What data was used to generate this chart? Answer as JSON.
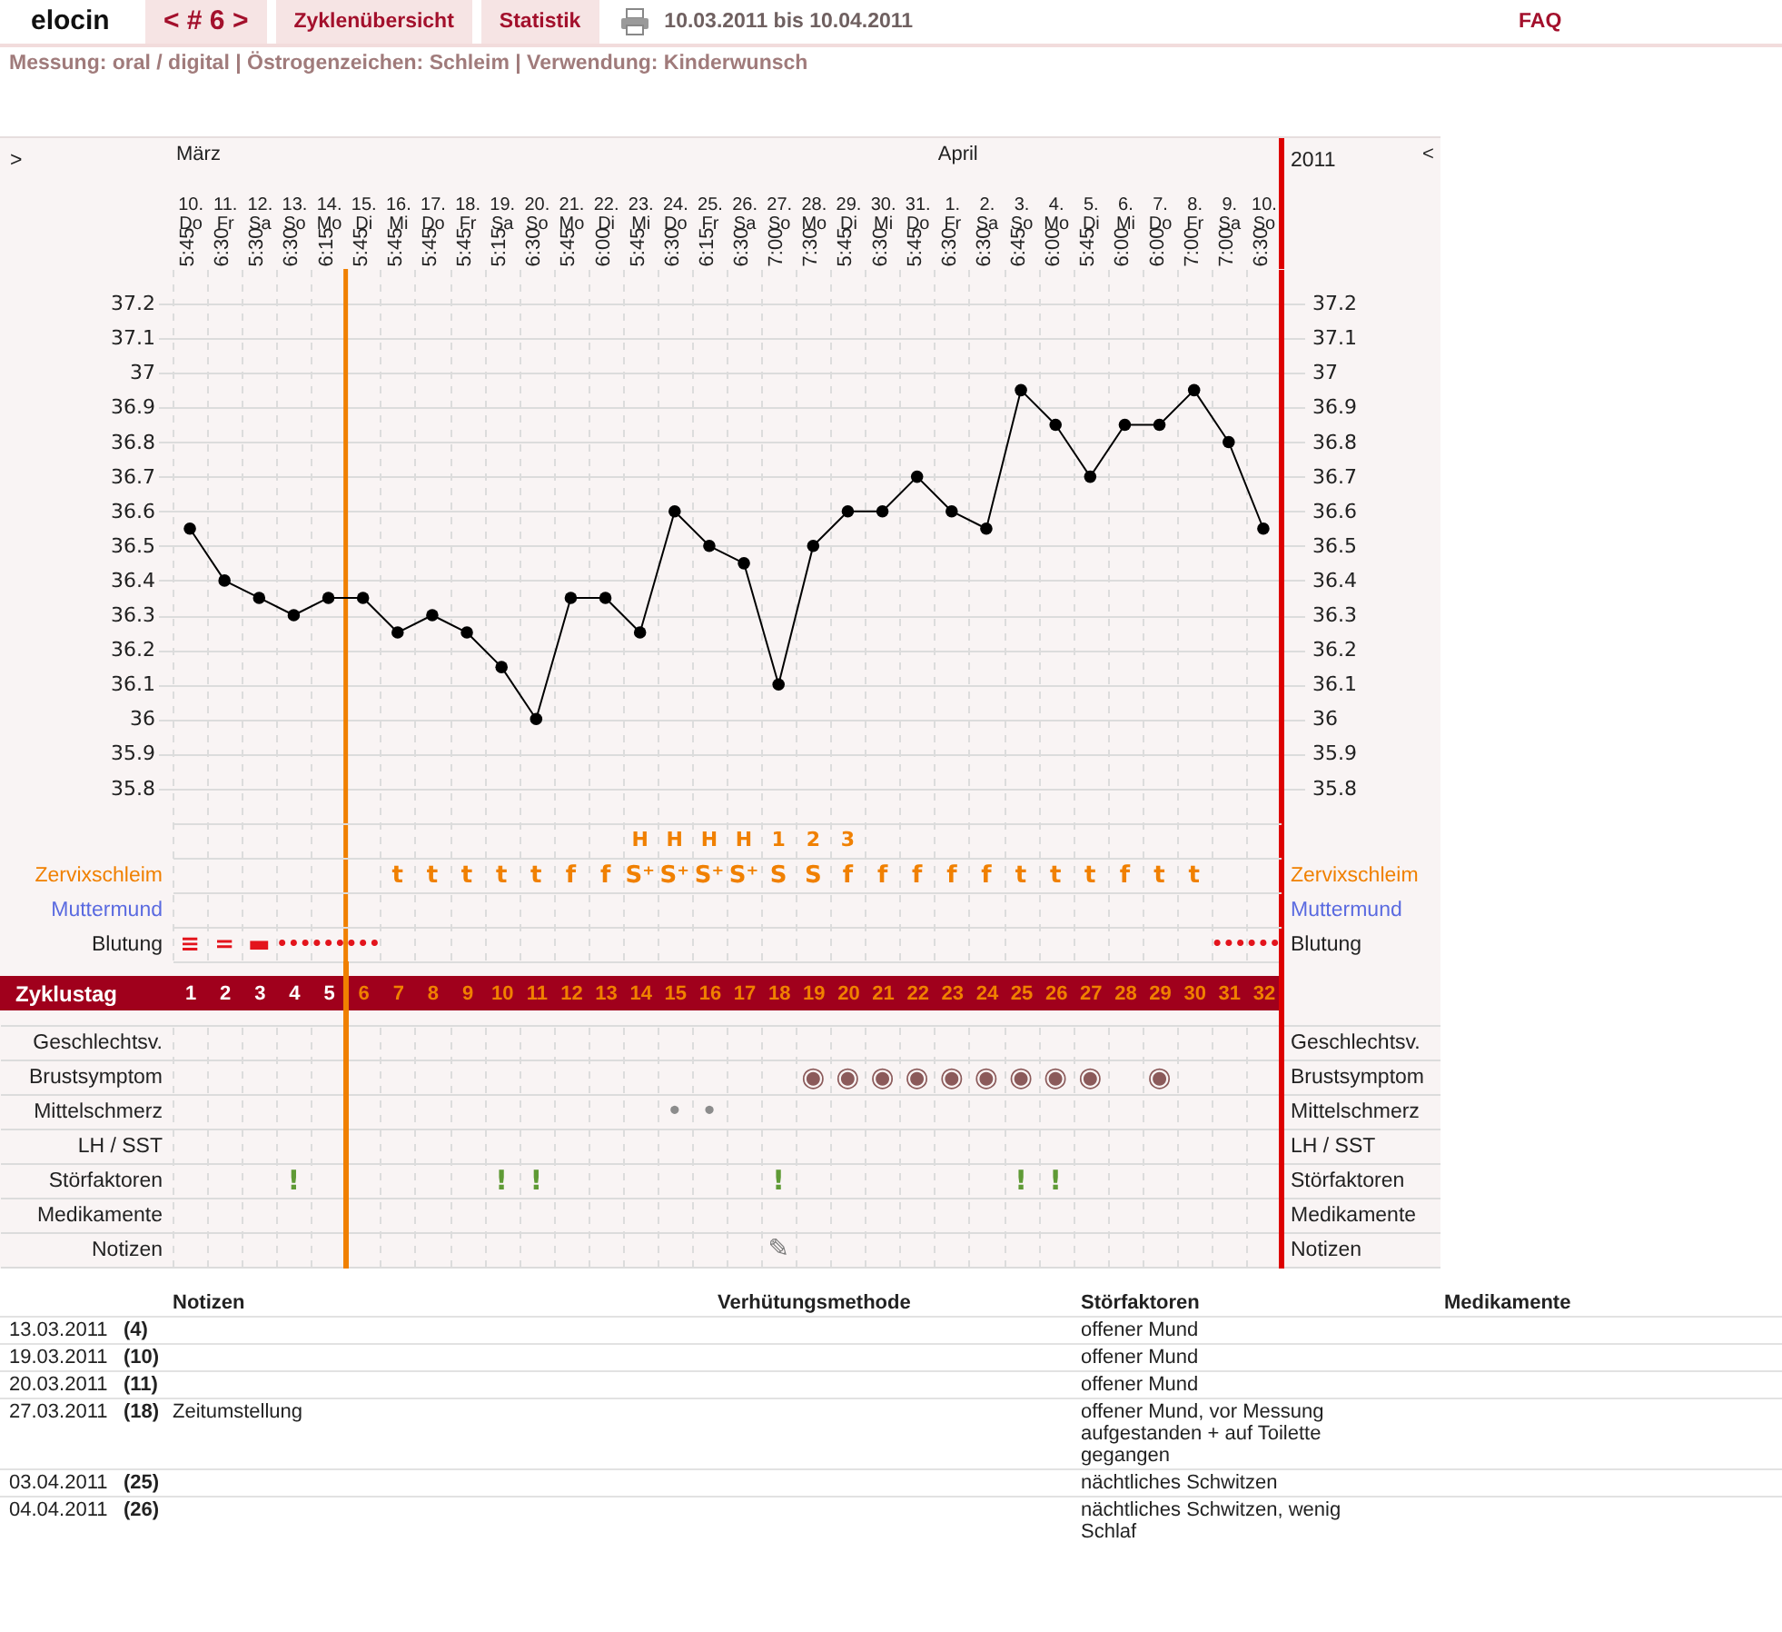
{
  "chart_data": [
    {
      "type": "other",
      "title": "10.03.2011 bis 10.04.2011",
      "subtitle": "Messung: oral / digital | Östrogenzeichen: Schleim | Verwendung: Kinderwunsch",
      "annotations": [
        "elocin",
        "< # 6 >",
        "Zyklenübersicht",
        "Statistik",
        "FAQ"
      ]
    },
    {
      "type": "other",
      "categories": [
        null,
        null,
        null,
        null,
        null,
        null,
        null,
        null,
        null,
        null,
        null,
        null,
        null,
        null,
        null,
        null,
        null,
        null,
        null,
        null,
        null,
        null,
        null,
        null,
        null,
        null,
        null,
        null,
        null,
        null,
        null,
        null
      ],
      "y_categories": [
        ">",
        null,
        null
      ],
      "y2_categories": [
        "2011",
        null,
        null
      ],
      "cell_labels": [
        [
          "März",
          null,
          null,
          null,
          null,
          null,
          null,
          null,
          null,
          null,
          null,
          null,
          null,
          null,
          null,
          null,
          null,
          null,
          null,
          null,
          null,
          null,
          "April",
          null,
          null,
          null,
          null,
          null,
          null,
          null,
          null,
          null
        ],
        [
          null,
          null,
          null,
          null,
          null,
          null,
          null,
          null,
          null,
          null,
          null,
          null,
          null,
          null,
          null,
          null,
          null,
          null,
          null,
          null,
          null,
          null,
          null,
          null,
          null,
          null,
          null,
          null,
          null,
          null,
          null,
          null
        ],
        [
          "5:45",
          "6:30",
          "5:30",
          "6:30",
          "6:15",
          "5:45",
          "5:45",
          "5:45",
          "5:45",
          "5:15",
          "6:30",
          "5:45",
          "6:00",
          "5:45",
          "6:30",
          "6:15",
          "6:30",
          "7:00",
          "7:30",
          "5:45",
          "6:30",
          "5:45",
          "6:30",
          "6:30",
          "6:45",
          "6:00",
          "5:45",
          "6:00",
          "6:00",
          "7:00",
          "7:00",
          "6:30"
        ]
      ],
      "annotations": [
        "<"
      ]
    },
    {
      "type": "line",
      "x": [
        1,
        2,
        3,
        4,
        5,
        6,
        7,
        8,
        9,
        10,
        11,
        12,
        13,
        14,
        15,
        16,
        17,
        18,
        19,
        20,
        21,
        22,
        23,
        24,
        25,
        26,
        27,
        28,
        29,
        30,
        31,
        32
      ],
      "values": [
        36.55,
        36.4,
        36.35,
        36.3,
        36.35,
        36.35,
        36.25,
        36.3,
        36.25,
        36.15,
        36.0,
        36.35,
        36.35,
        36.25,
        36.6,
        36.5,
        36.45,
        36.1,
        36.5,
        36.6,
        36.6,
        36.7,
        36.6,
        36.55,
        36.95,
        36.85,
        36.7,
        36.85,
        36.85,
        36.95,
        36.8,
        36.55
      ],
      "color": "#000000",
      "marker": "circle",
      "grid": true,
      "xlabel": "Zyklustag",
      "xlim": [
        0.5,
        32.5
      ],
      "xticks": [
        {
          "value": 0.5,
          "label": null
        },
        1,
        {
          "value": 1.5,
          "label": null
        },
        2,
        {
          "value": 2.5,
          "label": null
        },
        3,
        {
          "value": 3.5,
          "label": null
        },
        4,
        {
          "value": 4.5,
          "label": null
        },
        5,
        {
          "value": 5.5,
          "label": null
        },
        6,
        {
          "value": 6.5,
          "label": null
        },
        7,
        {
          "value": 7.5,
          "label": null
        },
        8,
        {
          "value": 8.5,
          "label": null
        },
        9,
        {
          "value": 9.5,
          "label": null
        },
        10,
        {
          "value": 10.5,
          "label": null
        },
        11,
        {
          "value": 11.5,
          "label": null
        },
        12,
        {
          "value": 12.5,
          "label": null
        },
        13,
        {
          "value": 13.5,
          "label": null
        },
        14,
        {
          "value": 14.5,
          "label": null
        },
        15,
        {
          "value": 15.5,
          "label": null
        },
        16,
        {
          "value": 16.5,
          "label": null
        },
        17,
        {
          "value": 17.5,
          "label": null
        },
        18,
        {
          "value": 18.5,
          "label": null
        },
        19,
        {
          "value": 19.5,
          "label": null
        },
        20,
        {
          "value": 20.5,
          "label": null
        },
        21,
        {
          "value": 21.5,
          "label": null
        },
        22,
        {
          "value": 22.5,
          "label": null
        },
        23,
        {
          "value": 23.5,
          "label": null
        },
        24,
        {
          "value": 24.5,
          "label": null
        },
        25,
        {
          "value": 25.5,
          "label": null
        },
        26,
        {
          "value": 26.5,
          "label": null
        },
        27,
        {
          "value": 27.5,
          "label": null
        },
        28,
        {
          "value": 28.5,
          "label": null
        },
        29,
        {
          "value": 29.5,
          "label": null
        },
        30,
        {
          "value": 30.5,
          "label": null
        },
        31,
        {
          "value": 31.5,
          "label": null
        },
        32
      ],
      "x2lim": [
        "2011-03-09T12:00",
        "2011-04-10T12:00"
      ],
      "x2ticks": [
        {
          "value": "2011-03-10",
          "label": "10. Do"
        },
        {
          "value": "2011-03-11",
          "label": "11. Fr"
        },
        {
          "value": "2011-03-12",
          "label": "12. Sa"
        },
        {
          "value": "2011-03-13",
          "label": "13. So"
        },
        {
          "value": "2011-03-14",
          "label": "14. Mo"
        },
        {
          "value": "2011-03-15",
          "label": "15. Di"
        },
        {
          "value": "2011-03-16",
          "label": "16. Mi"
        },
        {
          "value": "2011-03-17",
          "label": "17. Do"
        },
        {
          "value": "2011-03-18",
          "label": "18. Fr"
        },
        {
          "value": "2011-03-19",
          "label": "19. Sa"
        },
        {
          "value": "2011-03-20",
          "label": "20. So"
        },
        {
          "value": "2011-03-21",
          "label": "21. Mo"
        },
        {
          "value": "2011-03-22",
          "label": "22. Di"
        },
        {
          "value": "2011-03-23",
          "label": "23. Mi"
        },
        {
          "value": "2011-03-24",
          "label": "24. Do"
        },
        {
          "value": "2011-03-25",
          "label": "25. Fr"
        },
        {
          "value": "2011-03-26",
          "label": "26. Sa"
        },
        {
          "value": "2011-03-27",
          "label": "27. So"
        },
        {
          "value": "2011-03-28",
          "label": "28. Mo"
        },
        {
          "value": "2011-03-29",
          "label": "29. Di"
        },
        {
          "value": "2011-03-30",
          "label": "30. Mi"
        },
        {
          "value": "2011-03-31",
          "label": "31. Do"
        },
        {
          "value": "2011-04-01",
          "label": "1. Fr"
        },
        {
          "value": "2011-04-02",
          "label": "2. Sa"
        },
        {
          "value": "2011-04-03",
          "label": "3. So"
        },
        {
          "value": "2011-04-04",
          "label": "4. Mo"
        },
        {
          "value": "2011-04-05",
          "label": "5. Di"
        },
        {
          "value": "2011-04-06",
          "label": "6. Mi"
        },
        {
          "value": "2011-04-07",
          "label": "7. Do"
        },
        {
          "value": "2011-04-08",
          "label": "8. Fr"
        },
        {
          "value": "2011-04-09",
          "label": "9. Sa"
        },
        {
          "value": "2011-04-10",
          "label": "10. So"
        }
      ],
      "ylim": [
        35.3,
        37.3
      ],
      "yticks": [
        35.8,
        35.9,
        36,
        36.1,
        36.2,
        36.3,
        36.4,
        36.5,
        36.6,
        36.7,
        36.8,
        36.9,
        37,
        37.1,
        37.2
      ],
      "y2lim": [
        35.3,
        37.3
      ],
      "y2ticks": [
        35.8,
        35.9,
        36,
        36.1,
        36.2,
        36.3,
        36.4,
        36.5,
        36.6,
        36.7,
        36.8,
        36.9,
        37,
        37.1,
        37.2
      ],
      "ref_lines": [
        {
          "axis": "x",
          "value": 5.5,
          "color": "#f08000"
        }
      ]
    },
    {
      "type": "other",
      "categories": [
        null,
        null,
        null,
        null,
        null,
        null,
        null,
        null,
        null,
        null,
        null,
        null,
        null,
        null,
        null,
        null,
        null,
        null,
        null,
        null,
        null,
        null,
        null,
        null,
        null,
        null,
        null,
        null,
        null,
        null,
        null,
        null
      ],
      "y_categories": [
        null,
        "Zervixschleim",
        "Muttermund",
        "Blutung"
      ],
      "y2_categories": [
        null,
        "Zervixschleim",
        "Muttermund",
        "Blutung"
      ],
      "cell_labels": [
        [
          null,
          null,
          null,
          null,
          null,
          null,
          null,
          null,
          null,
          null,
          null,
          null,
          null,
          "H",
          "H",
          "H",
          "H",
          "1",
          "2",
          "3",
          null,
          null,
          null,
          null,
          null,
          null,
          null,
          null,
          null,
          null,
          null,
          null
        ],
        [
          null,
          null,
          null,
          null,
          null,
          null,
          "t",
          "t",
          "t",
          "t",
          "t",
          "f",
          "f",
          "S⁺",
          "S⁺",
          "S⁺",
          "S⁺",
          "S",
          "S",
          "f",
          "f",
          "f",
          "f",
          "f",
          "t",
          "t",
          "t",
          "f",
          "t",
          "t",
          null,
          null
        ],
        [
          null,
          null,
          null,
          null,
          null,
          null,
          null,
          null,
          null,
          null,
          null,
          null,
          null,
          null,
          null,
          null,
          null,
          null,
          null,
          null,
          null,
          null,
          null,
          null,
          null,
          null,
          null,
          null,
          null,
          null,
          null,
          null
        ],
        [
          "≡",
          "=",
          "▬",
          "•••",
          "•••",
          "•••",
          null,
          null,
          null,
          null,
          null,
          null,
          null,
          null,
          null,
          null,
          null,
          null,
          null,
          null,
          null,
          null,
          null,
          null,
          null,
          null,
          null,
          null,
          null,
          null,
          "•••",
          "•••"
        ]
      ]
    },
    {
      "type": "other",
      "categories": [
        null,
        null,
        null,
        null,
        null,
        null,
        null,
        null,
        null,
        null,
        null,
        null,
        null,
        null,
        null,
        null,
        null,
        null,
        null,
        null,
        null,
        null,
        null,
        null,
        null,
        null,
        null,
        null,
        null,
        null,
        null,
        null
      ],
      "y_categories": [
        "Geschlechtsv.",
        "Brustsymptom",
        "Mittelschmerz",
        "LH / SST",
        "Störfaktoren",
        "Medikamente",
        "Notizen"
      ],
      "y2_categories": [
        "Geschlechtsv.",
        "Brustsymptom",
        "Mittelschmerz",
        "LH / SST",
        "Störfaktoren",
        "Medikamente",
        "Notizen"
      ],
      "cell_labels": [
        [
          null,
          null,
          null,
          null,
          null,
          null,
          null,
          null,
          null,
          null,
          null,
          null,
          null,
          null,
          null,
          null,
          null,
          null,
          null,
          null,
          null,
          null,
          null,
          null,
          null,
          null,
          null,
          null,
          null,
          null,
          null,
          null
        ],
        [
          null,
          null,
          null,
          null,
          null,
          null,
          null,
          null,
          null,
          null,
          null,
          null,
          null,
          null,
          null,
          null,
          null,
          null,
          "◉",
          "◉",
          "◉",
          "◉",
          "◉",
          "◉",
          "◉",
          "◉",
          "◉",
          null,
          "◉",
          null,
          null,
          null
        ],
        [
          null,
          null,
          null,
          null,
          null,
          null,
          null,
          null,
          null,
          null,
          null,
          null,
          null,
          null,
          "•",
          "•",
          null,
          null,
          null,
          null,
          null,
          null,
          null,
          null,
          null,
          null,
          null,
          null,
          null,
          null,
          null,
          null
        ],
        [
          null,
          null,
          null,
          null,
          null,
          null,
          null,
          null,
          null,
          null,
          null,
          null,
          null,
          null,
          null,
          null,
          null,
          null,
          null,
          null,
          null,
          null,
          null,
          null,
          null,
          null,
          null,
          null,
          null,
          null,
          null,
          null
        ],
        [
          null,
          null,
          null,
          "!",
          null,
          null,
          null,
          null,
          null,
          "!",
          "!",
          null,
          null,
          null,
          null,
          null,
          null,
          "!",
          null,
          null,
          null,
          null,
          null,
          null,
          "!",
          "!",
          null,
          null,
          null,
          null,
          null,
          null
        ],
        [
          null,
          null,
          null,
          null,
          null,
          null,
          null,
          null,
          null,
          null,
          null,
          null,
          null,
          null,
          null,
          null,
          null,
          null,
          null,
          null,
          null,
          null,
          null,
          null,
          null,
          null,
          null,
          null,
          null,
          null,
          null,
          null
        ],
        [
          null,
          null,
          null,
          null,
          null,
          null,
          null,
          null,
          null,
          null,
          null,
          null,
          null,
          null,
          null,
          null,
          null,
          "✎",
          null,
          null,
          null,
          null,
          null,
          null,
          null,
          null,
          null,
          null,
          null,
          null,
          null,
          null
        ]
      ]
    },
    {
      "type": "other",
      "categories": [
        null,
        null,
        "Notizen",
        "Verhütungsmethode",
        "Störfaktoren",
        "Medikamente"
      ],
      "cell_labels": [
        [
          "13.03.2011",
          "(4)",
          null,
          null,
          "offener Mund",
          null
        ],
        [
          "19.03.2011",
          "(10)",
          null,
          null,
          "offener Mund",
          null
        ],
        [
          "20.03.2011",
          "(11)",
          null,
          null,
          "offener Mund",
          null
        ],
        [
          "27.03.2011",
          "(18)",
          "Zeitumstellung",
          null,
          "offener Mund, vor Messung aufgestanden + auf Toilette gegangen",
          null
        ],
        [
          "03.04.2011",
          "(25)",
          null,
          null,
          "nächtliches Schwitzen",
          null
        ],
        [
          "04.04.2011",
          "(26)",
          null,
          null,
          "nächtliches Schwitzen, wenig Schlaf",
          null
        ]
      ]
    }
  ]
}
